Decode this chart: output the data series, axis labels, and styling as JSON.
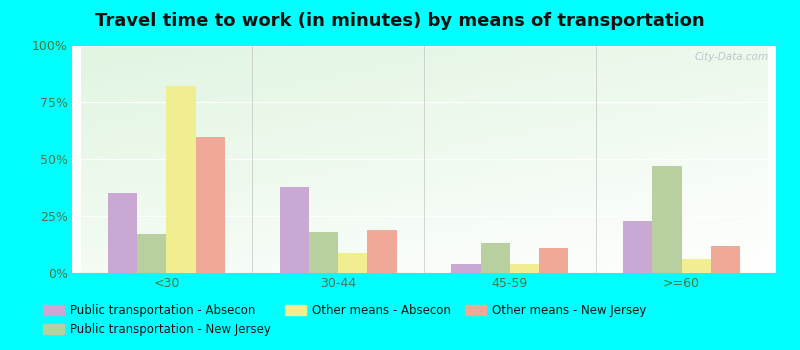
{
  "title": "Travel time to work (in minutes) by means of transportation",
  "categories": [
    "<30",
    "30-44",
    "45-59",
    ">=60"
  ],
  "series_order": [
    "Public transportation - Absecon",
    "Public transportation - New Jersey",
    "Other means - Absecon",
    "Other means - New Jersey"
  ],
  "series": {
    "Public transportation - Absecon": [
      35,
      38,
      4,
      23
    ],
    "Public transportation - New Jersey": [
      17,
      18,
      13,
      47
    ],
    "Other means - Absecon": [
      82,
      9,
      4,
      6
    ],
    "Other means - New Jersey": [
      60,
      19,
      11,
      12
    ]
  },
  "colors": {
    "Public transportation - Absecon": "#c9a8d4",
    "Public transportation - New Jersey": "#b8cfa0",
    "Other means - Absecon": "#f0ee90",
    "Other means - New Jersey": "#f0a898"
  },
  "ylim": [
    0,
    100
  ],
  "yticks": [
    0,
    25,
    50,
    75,
    100
  ],
  "ytick_labels": [
    "0%",
    "25%",
    "50%",
    "75%",
    "100%"
  ],
  "outer_background": "#00ffff",
  "watermark": "City-Data.com",
  "title_fontsize": 13,
  "tick_fontsize": 9,
  "legend_fontsize": 8.5
}
